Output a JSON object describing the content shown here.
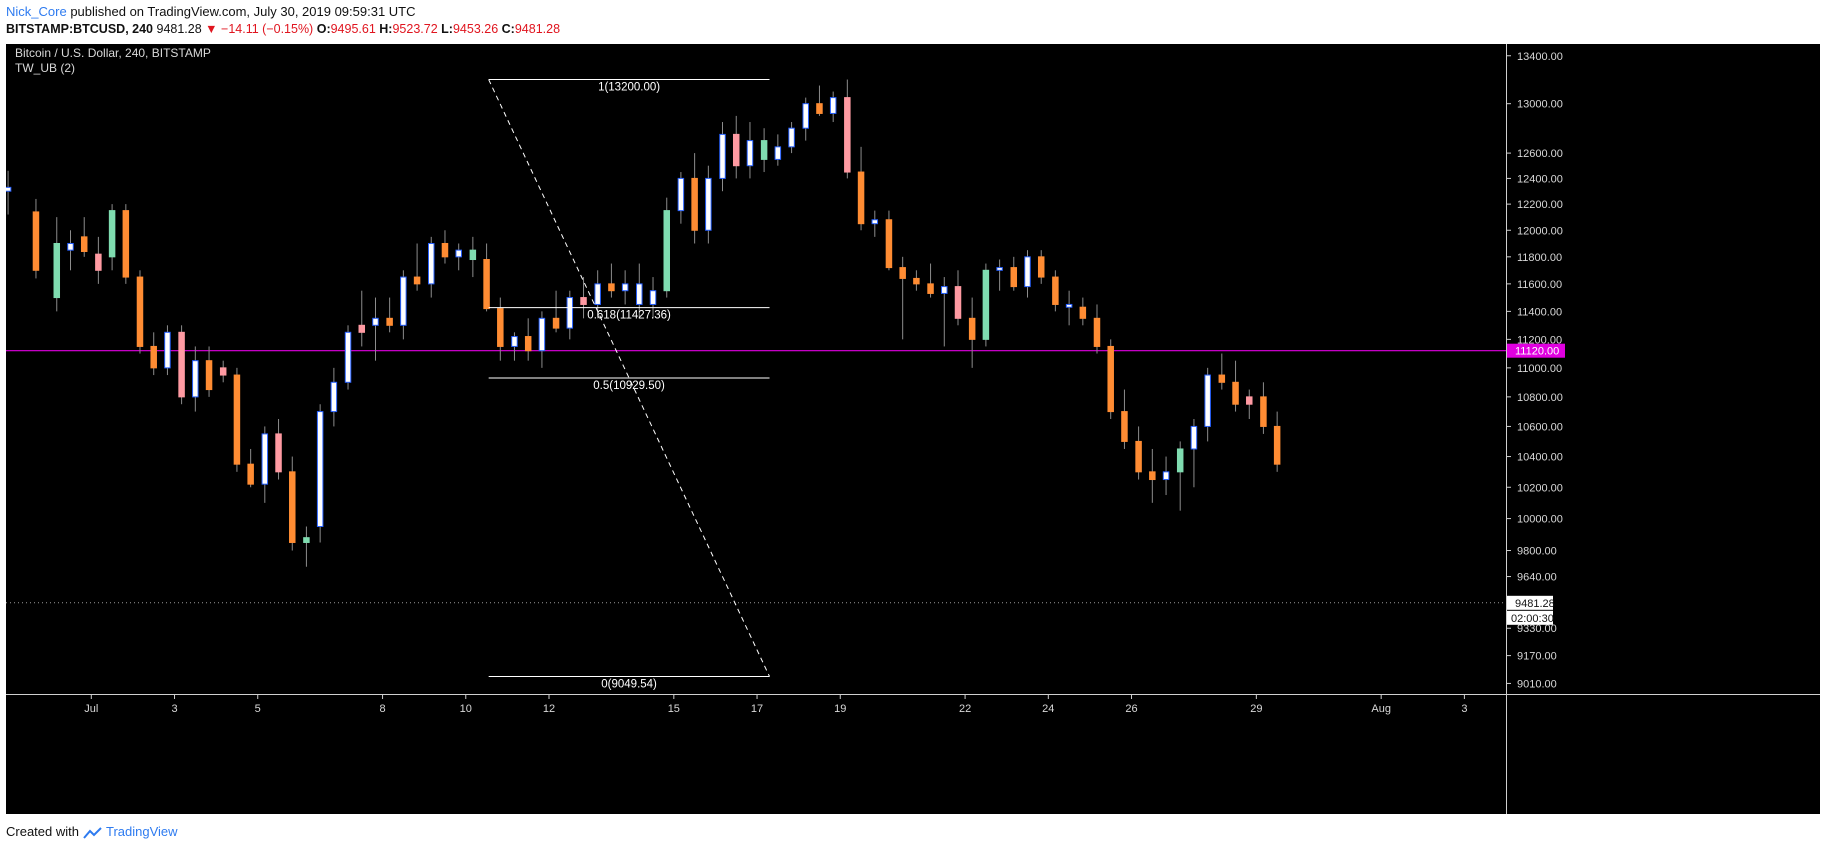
{
  "header": {
    "author": "Nick_Core",
    "published_text": "published on TradingView.com, July 30, 2019 09:59:31 UTC",
    "symbol": "BITSTAMP:BTCUSD, 240",
    "last": "9481.28",
    "change_arrow": "▼",
    "change": "−14.11 (−0.15%)",
    "o_label": "O:",
    "o_value": "9495.61",
    "h_label": "H:",
    "h_value": "9523.72",
    "l_label": "L:",
    "l_value": "9453.26",
    "c_label": "C:",
    "c_value": "9481.28"
  },
  "legend": {
    "title": "Bitcoin / U.S. Dollar, 240, BITSTAMP",
    "indicator": "TW_UB (2)"
  },
  "footer": {
    "created_with": "Created with",
    "brand": "TradingView"
  },
  "colors": {
    "background": "#000000",
    "bull_body": "#ffffff",
    "bull_border": "#2962ff",
    "bull_alt": "#7fdcb0",
    "bear_body": "#ff8c33",
    "bear_alt": "#ff9aa2",
    "magenta": "#e000e0",
    "axis_text": "#d8d8d8"
  },
  "chart_data": {
    "type": "candlestick",
    "y_scale": "log",
    "ylim": [
      8950,
      13500
    ],
    "y_ticks": [
      "13400.00",
      "13000.00",
      "12600.00",
      "12400.00",
      "12200.00",
      "12000.00",
      "11800.00",
      "11600.00",
      "11400.00",
      "11200.00",
      "11000.00",
      "10800.00",
      "10600.00",
      "10400.00",
      "10200.00",
      "10000.00",
      "9800.00",
      "9640.00",
      "9330.00",
      "9170.00",
      "9010.00"
    ],
    "x_ticks": [
      "Jul",
      "3",
      "5",
      "8",
      "10",
      "12",
      "15",
      "17",
      "19",
      "22",
      "24",
      "26",
      "29",
      "Aug",
      "3"
    ],
    "x_tick_days": [
      1,
      3,
      5,
      8,
      10,
      12,
      15,
      17,
      19,
      22,
      24,
      26,
      29,
      32,
      34
    ],
    "x_range_days": [
      -1.05,
      35
    ],
    "horizontal_line": {
      "value": 11120.0,
      "label": "11120.00",
      "color": "#e000e0"
    },
    "last_price": {
      "value": 9481.28,
      "label": "9481.28",
      "countdown": "02:00:30"
    },
    "fibonacci": {
      "start_day": 10.55,
      "end_day": 17.3,
      "high": 13200.0,
      "low": 9049.54,
      "levels": [
        {
          "ratio": 1,
          "value": 13200.0,
          "label": "1(13200.00)"
        },
        {
          "ratio": 0.618,
          "value": 11427.36,
          "label": "0.618(11427.36)"
        },
        {
          "ratio": 0.5,
          "value": 10929.5,
          "label": "0.5(10929.50)"
        },
        {
          "ratio": 0,
          "value": 9049.54,
          "label": "0(9049.54)"
        }
      ]
    },
    "candles": [
      {
        "t": -1.0,
        "o": 12300,
        "h": 12460,
        "l": 12120,
        "c": 12330,
        "k": "blue"
      },
      {
        "t": -0.33,
        "o": 12140,
        "h": 12240,
        "l": 11640,
        "c": 11700,
        "k": "orange"
      },
      {
        "t": 0.17,
        "o": 11900,
        "h": 12100,
        "l": 11400,
        "c": 11500,
        "k": "green"
      },
      {
        "t": 0.5,
        "o": 11850,
        "h": 12000,
        "l": 11700,
        "c": 11900,
        "k": "blue"
      },
      {
        "t": 0.83,
        "o": 11950,
        "h": 12100,
        "l": 11800,
        "c": 11840,
        "k": "orange"
      },
      {
        "t": 1.17,
        "o": 11820,
        "h": 11950,
        "l": 11600,
        "c": 11700,
        "k": "pink"
      },
      {
        "t": 1.5,
        "o": 11800,
        "h": 12200,
        "l": 11700,
        "c": 12150,
        "k": "green"
      },
      {
        "t": 1.83,
        "o": 12150,
        "h": 12200,
        "l": 11600,
        "c": 11650,
        "k": "orange"
      },
      {
        "t": 2.17,
        "o": 11650,
        "h": 11700,
        "l": 11100,
        "c": 11150,
        "k": "orange"
      },
      {
        "t": 2.5,
        "o": 11150,
        "h": 11250,
        "l": 10950,
        "c": 11000,
        "k": "orange"
      },
      {
        "t": 2.83,
        "o": 11000,
        "h": 11300,
        "l": 10950,
        "c": 11250,
        "k": "blue"
      },
      {
        "t": 3.17,
        "o": 11250,
        "h": 11300,
        "l": 10750,
        "c": 10800,
        "k": "pink"
      },
      {
        "t": 3.5,
        "o": 10800,
        "h": 11150,
        "l": 10700,
        "c": 11050,
        "k": "blue"
      },
      {
        "t": 3.83,
        "o": 11050,
        "h": 11150,
        "l": 10800,
        "c": 10850,
        "k": "orange"
      },
      {
        "t": 4.17,
        "o": 11000,
        "h": 11050,
        "l": 10900,
        "c": 10950,
        "k": "pink"
      },
      {
        "t": 4.5,
        "o": 10950,
        "h": 11000,
        "l": 10300,
        "c": 10350,
        "k": "orange"
      },
      {
        "t": 4.83,
        "o": 10350,
        "h": 10450,
        "l": 10200,
        "c": 10220,
        "k": "orange"
      },
      {
        "t": 5.17,
        "o": 10220,
        "h": 10600,
        "l": 10100,
        "c": 10550,
        "k": "blue"
      },
      {
        "t": 5.5,
        "o": 10550,
        "h": 10650,
        "l": 10250,
        "c": 10300,
        "k": "pink"
      },
      {
        "t": 5.83,
        "o": 10300,
        "h": 10400,
        "l": 9800,
        "c": 9850,
        "k": "orange"
      },
      {
        "t": 6.17,
        "o": 9850,
        "h": 9950,
        "l": 9700,
        "c": 9880,
        "k": "green"
      },
      {
        "t": 6.5,
        "o": 9950,
        "h": 10750,
        "l": 9850,
        "c": 10700,
        "k": "blue"
      },
      {
        "t": 6.83,
        "o": 10700,
        "h": 11000,
        "l": 10600,
        "c": 10900,
        "k": "blue"
      },
      {
        "t": 7.17,
        "o": 10900,
        "h": 11300,
        "l": 10850,
        "c": 11250,
        "k": "blue"
      },
      {
        "t": 7.5,
        "o": 11250,
        "h": 11550,
        "l": 11150,
        "c": 11300,
        "k": "pink"
      },
      {
        "t": 7.83,
        "o": 11300,
        "h": 11500,
        "l": 11050,
        "c": 11350,
        "k": "blue"
      },
      {
        "t": 8.17,
        "o": 11350,
        "h": 11500,
        "l": 11250,
        "c": 11300,
        "k": "orange"
      },
      {
        "t": 8.5,
        "o": 11300,
        "h": 11700,
        "l": 11200,
        "c": 11650,
        "k": "blue"
      },
      {
        "t": 8.83,
        "o": 11650,
        "h": 11900,
        "l": 11550,
        "c": 11600,
        "k": "orange"
      },
      {
        "t": 9.17,
        "o": 11600,
        "h": 11950,
        "l": 11500,
        "c": 11900,
        "k": "blue"
      },
      {
        "t": 9.5,
        "o": 11900,
        "h": 12000,
        "l": 11750,
        "c": 11800,
        "k": "orange"
      },
      {
        "t": 9.83,
        "o": 11800,
        "h": 11900,
        "l": 11700,
        "c": 11850,
        "k": "blue"
      },
      {
        "t": 10.17,
        "o": 11850,
        "h": 11950,
        "l": 11650,
        "c": 11780,
        "k": "green"
      },
      {
        "t": 10.5,
        "o": 11780,
        "h": 11900,
        "l": 11400,
        "c": 11420,
        "k": "orange"
      },
      {
        "t": 10.83,
        "o": 11420,
        "h": 11500,
        "l": 11050,
        "c": 11150,
        "k": "orange"
      },
      {
        "t": 11.17,
        "o": 11150,
        "h": 11250,
        "l": 11050,
        "c": 11220,
        "k": "blue"
      },
      {
        "t": 11.5,
        "o": 11220,
        "h": 11350,
        "l": 11050,
        "c": 11120,
        "k": "orange"
      },
      {
        "t": 11.83,
        "o": 11120,
        "h": 11400,
        "l": 11000,
        "c": 11350,
        "k": "blue"
      },
      {
        "t": 12.17,
        "o": 11350,
        "h": 11550,
        "l": 11250,
        "c": 11280,
        "k": "orange"
      },
      {
        "t": 12.5,
        "o": 11280,
        "h": 11550,
        "l": 11200,
        "c": 11500,
        "k": "blue"
      },
      {
        "t": 12.83,
        "o": 11500,
        "h": 11650,
        "l": 11350,
        "c": 11450,
        "k": "pink"
      },
      {
        "t": 13.17,
        "o": 11450,
        "h": 11700,
        "l": 11350,
        "c": 11600,
        "k": "blue"
      },
      {
        "t": 13.5,
        "o": 11600,
        "h": 11750,
        "l": 11500,
        "c": 11550,
        "k": "orange"
      },
      {
        "t": 13.83,
        "o": 11550,
        "h": 11700,
        "l": 11450,
        "c": 11600,
        "k": "blue"
      },
      {
        "t": 14.17,
        "o": 11600,
        "h": 11750,
        "l": 11350,
        "c": 11450,
        "k": "blue"
      },
      {
        "t": 14.5,
        "o": 11450,
        "h": 11650,
        "l": 11350,
        "c": 11550,
        "k": "blue"
      },
      {
        "t": 14.83,
        "o": 11550,
        "h": 12250,
        "l": 11500,
        "c": 12150,
        "k": "green"
      },
      {
        "t": 15.17,
        "o": 12150,
        "h": 12450,
        "l": 12050,
        "c": 12400,
        "k": "blue"
      },
      {
        "t": 15.5,
        "o": 12400,
        "h": 12600,
        "l": 11900,
        "c": 12000,
        "k": "orange"
      },
      {
        "t": 15.83,
        "o": 12000,
        "h": 12500,
        "l": 11900,
        "c": 12400,
        "k": "blue"
      },
      {
        "t": 16.17,
        "o": 12400,
        "h": 12850,
        "l": 12300,
        "c": 12750,
        "k": "blue"
      },
      {
        "t": 16.5,
        "o": 12750,
        "h": 12900,
        "l": 12400,
        "c": 12500,
        "k": "pink"
      },
      {
        "t": 16.83,
        "o": 12500,
        "h": 12850,
        "l": 12400,
        "c": 12700,
        "k": "blue"
      },
      {
        "t": 17.17,
        "o": 12700,
        "h": 12800,
        "l": 12450,
        "c": 12550,
        "k": "green"
      },
      {
        "t": 17.5,
        "o": 12550,
        "h": 12750,
        "l": 12500,
        "c": 12650,
        "k": "blue"
      },
      {
        "t": 17.83,
        "o": 12650,
        "h": 12850,
        "l": 12600,
        "c": 12800,
        "k": "blue"
      },
      {
        "t": 18.17,
        "o": 12800,
        "h": 13050,
        "l": 12700,
        "c": 13000,
        "k": "blue"
      },
      {
        "t": 18.5,
        "o": 13000,
        "h": 13150,
        "l": 12900,
        "c": 12920,
        "k": "orange"
      },
      {
        "t": 18.83,
        "o": 12920,
        "h": 13100,
        "l": 12850,
        "c": 13050,
        "k": "blue"
      },
      {
        "t": 19.17,
        "o": 13050,
        "h": 13200,
        "l": 12400,
        "c": 12450,
        "k": "pink"
      },
      {
        "t": 19.5,
        "o": 12450,
        "h": 12650,
        "l": 12000,
        "c": 12050,
        "k": "orange"
      },
      {
        "t": 19.83,
        "o": 12050,
        "h": 12150,
        "l": 11950,
        "c": 12080,
        "k": "blue"
      },
      {
        "t": 20.17,
        "o": 12080,
        "h": 12150,
        "l": 11700,
        "c": 11720,
        "k": "orange"
      },
      {
        "t": 20.5,
        "o": 11720,
        "h": 11800,
        "l": 11200,
        "c": 11640,
        "k": "orange"
      },
      {
        "t": 20.83,
        "o": 11640,
        "h": 11700,
        "l": 11550,
        "c": 11600,
        "k": "orange"
      },
      {
        "t": 21.17,
        "o": 11600,
        "h": 11750,
        "l": 11500,
        "c": 11530,
        "k": "orange"
      },
      {
        "t": 21.5,
        "o": 11530,
        "h": 11650,
        "l": 11150,
        "c": 11580,
        "k": "blue"
      },
      {
        "t": 21.83,
        "o": 11580,
        "h": 11700,
        "l": 11300,
        "c": 11350,
        "k": "pink"
      },
      {
        "t": 22.17,
        "o": 11350,
        "h": 11500,
        "l": 11000,
        "c": 11200,
        "k": "orange"
      },
      {
        "t": 22.5,
        "o": 11200,
        "h": 11750,
        "l": 11150,
        "c": 11700,
        "k": "green"
      },
      {
        "t": 22.83,
        "o": 11700,
        "h": 11780,
        "l": 11550,
        "c": 11720,
        "k": "blue"
      },
      {
        "t": 23.17,
        "o": 11720,
        "h": 11800,
        "l": 11550,
        "c": 11580,
        "k": "orange"
      },
      {
        "t": 23.5,
        "o": 11580,
        "h": 11850,
        "l": 11500,
        "c": 11800,
        "k": "blue"
      },
      {
        "t": 23.83,
        "o": 11800,
        "h": 11850,
        "l": 11600,
        "c": 11650,
        "k": "orange"
      },
      {
        "t": 24.17,
        "o": 11650,
        "h": 11700,
        "l": 11400,
        "c": 11450,
        "k": "orange"
      },
      {
        "t": 24.5,
        "o": 11450,
        "h": 11550,
        "l": 11300,
        "c": 11430,
        "k": "blue"
      },
      {
        "t": 24.83,
        "o": 11430,
        "h": 11500,
        "l": 11300,
        "c": 11350,
        "k": "orange"
      },
      {
        "t": 25.17,
        "o": 11350,
        "h": 11450,
        "l": 11100,
        "c": 11150,
        "k": "orange"
      },
      {
        "t": 25.5,
        "o": 11150,
        "h": 11200,
        "l": 10650,
        "c": 10700,
        "k": "orange"
      },
      {
        "t": 25.83,
        "o": 10700,
        "h": 10850,
        "l": 10450,
        "c": 10500,
        "k": "orange"
      },
      {
        "t": 26.17,
        "o": 10500,
        "h": 10600,
        "l": 10250,
        "c": 10300,
        "k": "orange"
      },
      {
        "t": 26.5,
        "o": 10300,
        "h": 10450,
        "l": 10100,
        "c": 10250,
        "k": "orange"
      },
      {
        "t": 26.83,
        "o": 10250,
        "h": 10400,
        "l": 10150,
        "c": 10300,
        "k": "blue"
      },
      {
        "t": 27.17,
        "o": 10300,
        "h": 10500,
        "l": 10050,
        "c": 10450,
        "k": "green"
      },
      {
        "t": 27.5,
        "o": 10450,
        "h": 10650,
        "l": 10200,
        "c": 10600,
        "k": "blue"
      },
      {
        "t": 27.83,
        "o": 10600,
        "h": 11000,
        "l": 10500,
        "c": 10950,
        "k": "blue"
      },
      {
        "t": 28.17,
        "o": 10950,
        "h": 11100,
        "l": 10850,
        "c": 10900,
        "k": "orange"
      },
      {
        "t": 28.5,
        "o": 10900,
        "h": 11050,
        "l": 10700,
        "c": 10750,
        "k": "orange"
      },
      {
        "t": 28.83,
        "o": 10750,
        "h": 10850,
        "l": 10650,
        "c": 10800,
        "k": "pink"
      },
      {
        "t": 29.17,
        "o": 10800,
        "h": 10900,
        "l": 10550,
        "c": 10600,
        "k": "orange"
      },
      {
        "t": 29.5,
        "o": 10600,
        "h": 10700,
        "l": 10300,
        "c": 10350,
        "k": "orange"
      }
    ]
  }
}
